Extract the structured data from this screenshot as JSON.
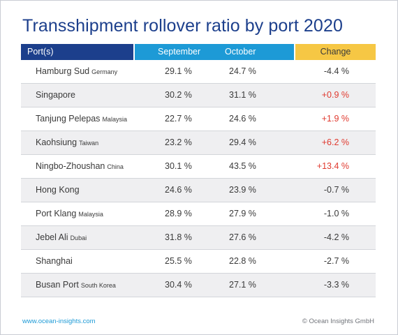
{
  "chart_data": {
    "type": "table",
    "title": "Transshipment rollover ratio by port 2020",
    "columns": [
      "Port(s)",
      "September",
      "October",
      "Change"
    ],
    "rows": [
      {
        "port": "Hamburg Sud",
        "region": "Germany",
        "september": "29.1 %",
        "october": "24.7 %",
        "change": "-4.4 %",
        "direction": "down"
      },
      {
        "port": "Singapore",
        "region": "",
        "september": "30.2 %",
        "october": "31.1 %",
        "change": "+0.9 %",
        "direction": "up"
      },
      {
        "port": "Tanjung Pelepas",
        "region": "Malaysia",
        "september": "22.7 %",
        "october": "24.6 %",
        "change": "+1.9 %",
        "direction": "up"
      },
      {
        "port": "Kaohsiung",
        "region": "Taiwan",
        "september": "23.2 %",
        "october": "29.4 %",
        "change": "+6.2 %",
        "direction": "up"
      },
      {
        "port": "Ningbo-Zhoushan",
        "region": "China",
        "september": "30.1 %",
        "october": "43.5 %",
        "change": "+13.4 %",
        "direction": "up"
      },
      {
        "port": "Hong Kong",
        "region": "",
        "september": "24.6 %",
        "october": "23.9 %",
        "change": "-0.7 %",
        "direction": "down"
      },
      {
        "port": "Port Klang",
        "region": "Malaysia",
        "september": "28.9 %",
        "october": "27.9 %",
        "change": "-1.0 %",
        "direction": "down"
      },
      {
        "port": "Jebel Ali",
        "region": "Dubai",
        "september": "31.8 %",
        "october": "27.6 %",
        "change": "-4.2 %",
        "direction": "down"
      },
      {
        "port": "Shanghai",
        "region": "",
        "september": "25.5 %",
        "october": "22.8 %",
        "change": "-2.7 %",
        "direction": "down"
      },
      {
        "port": "Busan Port",
        "region": "South Korea",
        "september": "30.4 %",
        "october": "27.1 %",
        "change": "-3.3 %",
        "direction": "down"
      }
    ],
    "colors": {
      "title": "#1c3f8c",
      "port_header": "#1c3f8c",
      "month_header": "#1d9ad6",
      "change_header": "#f6c744",
      "positive_change": "#e03a2f",
      "row_shade": "#efeff1"
    }
  },
  "footer": {
    "website": "www.ocean-insights.com",
    "copyright": "© Ocean Insights GmbH"
  }
}
